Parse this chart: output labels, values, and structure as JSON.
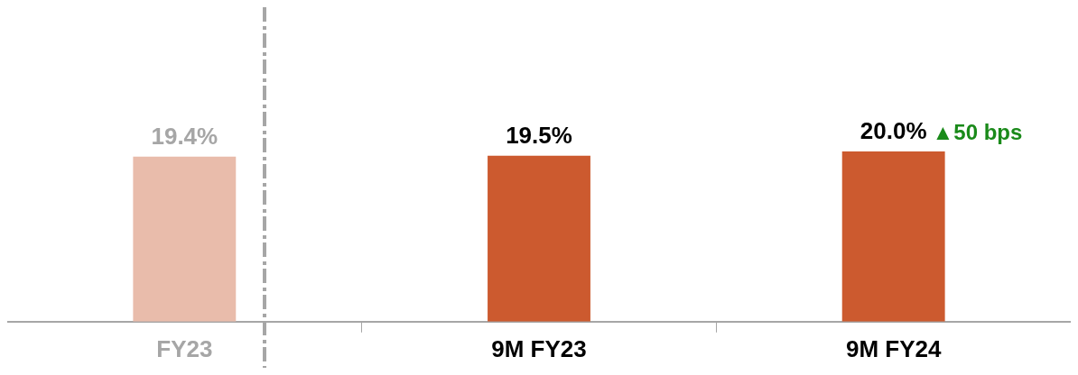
{
  "chart_data": {
    "type": "bar",
    "categories": [
      "FY23",
      "9M FY23",
      "9M FY24"
    ],
    "values": [
      19.4,
      19.5,
      20.0
    ],
    "colors": [
      "#e9bcab",
      "#cc5a2f",
      "#cc5a2f"
    ],
    "data_labels": true,
    "value_labels": [
      "19.4%",
      "19.5%",
      "20.0%"
    ],
    "annotations": [
      {
        "text": "▲50 bps",
        "x": "9M FY24",
        "y": 20.0
      }
    ],
    "grid": false,
    "legend": false,
    "tick_labels": "x"
  }
}
